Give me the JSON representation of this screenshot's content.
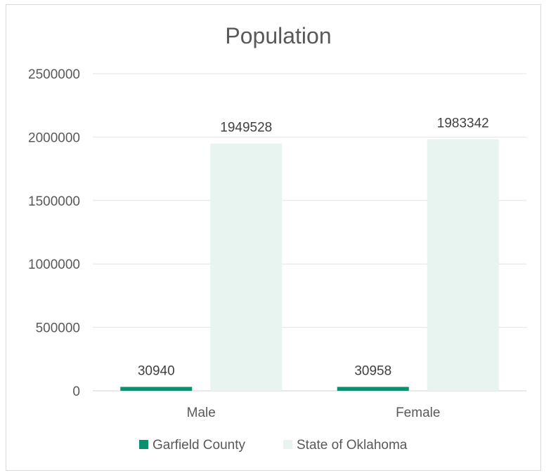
{
  "chart_data": {
    "type": "bar",
    "title": "Population",
    "categories": [
      "Male",
      "Female"
    ],
    "series": [
      {
        "name": "Garfield County",
        "color": "#0b8f6e",
        "values": [
          30940,
          30958
        ]
      },
      {
        "name": "State of Oklahoma",
        "color": "#e7f4ef",
        "values": [
          1949528,
          1983342
        ]
      }
    ],
    "ylim": [
      0,
      2500000
    ],
    "yticks": [
      0,
      500000,
      1000000,
      1500000,
      2000000,
      2500000
    ],
    "grid": true,
    "legend": "bottom"
  }
}
